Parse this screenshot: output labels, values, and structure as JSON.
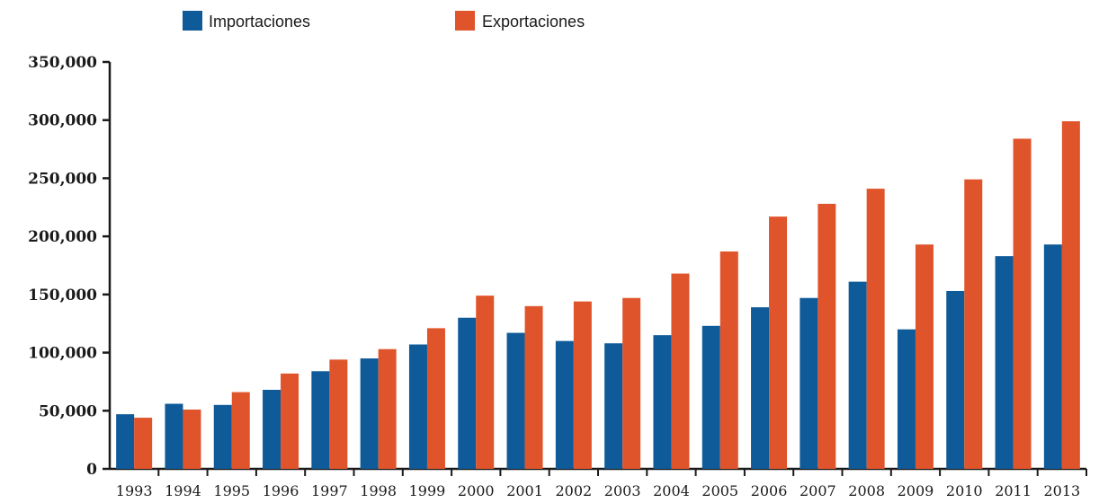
{
  "chart_data": {
    "type": "bar",
    "categories": [
      "1993",
      "1994",
      "1995",
      "1996",
      "1997",
      "1998",
      "1999",
      "2000",
      "2001",
      "2002",
      "2003",
      "2004",
      "2005",
      "2006",
      "2007",
      "2008",
      "2009",
      "2010",
      "2011",
      "2013"
    ],
    "series": [
      {
        "name": "Importaciones",
        "color": "#0f5a98",
        "values": [
          47000,
          56000,
          55000,
          68000,
          84000,
          95000,
          107000,
          130000,
          117000,
          110000,
          108000,
          115000,
          123000,
          139000,
          147000,
          161000,
          120000,
          153000,
          183000,
          193000
        ]
      },
      {
        "name": "Exportaciones",
        "color": "#e0542b",
        "values": [
          44000,
          51000,
          66000,
          82000,
          94000,
          103000,
          121000,
          149000,
          140000,
          144000,
          147000,
          168000,
          187000,
          217000,
          228000,
          241000,
          193000,
          249000,
          284000,
          299000
        ]
      }
    ],
    "yticks": [
      {
        "value": 0,
        "label": "0"
      },
      {
        "value": 50000,
        "label": "50,000"
      },
      {
        "value": 100000,
        "label": "100,000"
      },
      {
        "value": 150000,
        "label": "150,000"
      },
      {
        "value": 200000,
        "label": "200,000"
      },
      {
        "value": 250000,
        "label": "250,000"
      },
      {
        "value": 300000,
        "label": "300,000"
      },
      {
        "value": 350000,
        "label": "350,000"
      }
    ],
    "ylim": [
      0,
      350000
    ],
    "legend_position": "top",
    "title": "",
    "xlabel": "",
    "ylabel": ""
  }
}
